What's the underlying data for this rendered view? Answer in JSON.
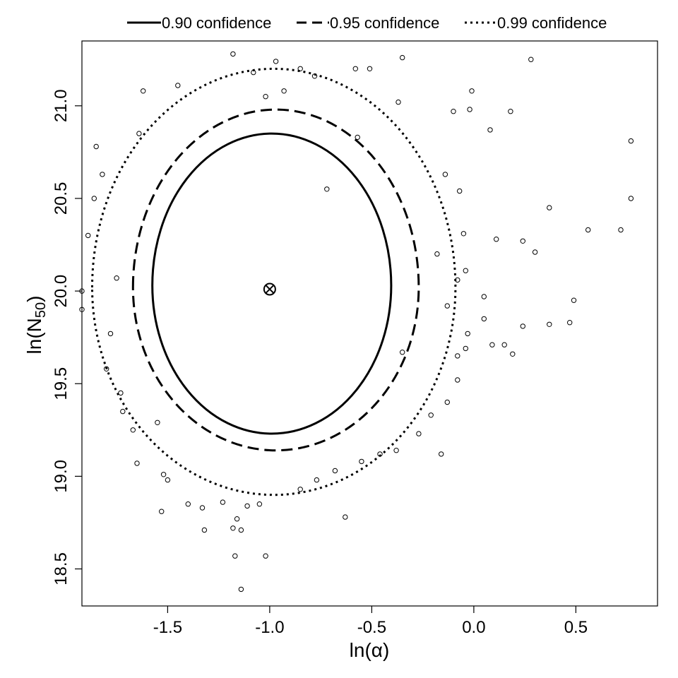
{
  "chart_data": {
    "type": "scatter",
    "title": "",
    "xlabel": "ln(α)",
    "ylabel": "ln(N50)",
    "ylabel_parts": {
      "prefix": "ln(N",
      "sub": "50",
      "suffix": ")"
    },
    "xlim": [
      -1.92,
      0.9
    ],
    "ylim": [
      18.3,
      21.35
    ],
    "x_ticks": [
      -1.5,
      -1.0,
      -0.5,
      0.0,
      0.5
    ],
    "x_tick_labels": [
      "-1.5",
      "-1.0",
      "-0.5",
      "0.0",
      "0.5"
    ],
    "y_ticks": [
      18.5,
      19.0,
      19.5,
      20.0,
      20.5,
      21.0
    ],
    "y_tick_labels": [
      "18.5",
      "19.0",
      "19.5",
      "20.0",
      "20.5",
      "21.0"
    ],
    "grid": false,
    "legend_placement": "top-outside",
    "legend": [
      {
        "label": "0.90 confidence",
        "style": "solid"
      },
      {
        "label": "0.95 confidence",
        "style": "dashed"
      },
      {
        "label": "0.99 confidence",
        "style": "dotted"
      }
    ],
    "center": {
      "x": -1.0,
      "y": 20.01
    },
    "ellipses": [
      {
        "level": "0.90",
        "style": "solid",
        "cx": -0.99,
        "cy": 20.03,
        "rx": 0.585,
        "ry_top": 0.82,
        "ry_bottom": 0.8
      },
      {
        "level": "0.95",
        "style": "dashed",
        "cx": -0.97,
        "cy": 20.02,
        "rx": 0.7,
        "ry_top": 0.96,
        "ry_bottom": 0.88
      },
      {
        "level": "0.99",
        "style": "dotted",
        "cx": -0.98,
        "cy": 20.02,
        "rx": 0.89,
        "ry_top": 1.18,
        "ry_bottom": 1.12
      }
    ],
    "points": [
      [
        -1.18,
        21.28
      ],
      [
        -1.08,
        21.18
      ],
      [
        -0.97,
        21.24
      ],
      [
        -0.85,
        21.2
      ],
      [
        -0.78,
        21.16
      ],
      [
        -0.58,
        21.2
      ],
      [
        -0.51,
        21.2
      ],
      [
        -0.35,
        21.26
      ],
      [
        0.28,
        21.25
      ],
      [
        -1.45,
        21.11
      ],
      [
        -1.62,
        21.08
      ],
      [
        -1.02,
        21.05
      ],
      [
        -0.93,
        21.08
      ],
      [
        -0.01,
        21.08
      ],
      [
        -0.37,
        21.02
      ],
      [
        0.18,
        20.97
      ],
      [
        -0.02,
        20.98
      ],
      [
        -1.85,
        20.78
      ],
      [
        0.77,
        20.81
      ],
      [
        0.08,
        20.87
      ],
      [
        -1.64,
        20.85
      ],
      [
        -0.1,
        20.97
      ],
      [
        -1.82,
        20.63
      ],
      [
        -0.72,
        20.55
      ],
      [
        -0.57,
        20.83
      ],
      [
        -1.86,
        20.5
      ],
      [
        0.77,
        20.5
      ],
      [
        -0.14,
        20.63
      ],
      [
        -0.07,
        20.54
      ],
      [
        0.37,
        20.45
      ],
      [
        0.56,
        20.33
      ],
      [
        -0.05,
        20.31
      ],
      [
        0.72,
        20.33
      ],
      [
        0.24,
        20.27
      ],
      [
        -1.89,
        20.3
      ],
      [
        0.11,
        20.28
      ],
      [
        -0.18,
        20.2
      ],
      [
        0.3,
        20.21
      ],
      [
        -0.08,
        20.06
      ],
      [
        -0.04,
        20.11
      ],
      [
        -1.92,
        20.0
      ],
      [
        -1.75,
        20.07
      ],
      [
        0.49,
        19.95
      ],
      [
        0.05,
        19.97
      ],
      [
        -0.13,
        19.92
      ],
      [
        -1.92,
        19.9
      ],
      [
        0.37,
        19.82
      ],
      [
        0.24,
        19.81
      ],
      [
        0.47,
        19.83
      ],
      [
        0.05,
        19.85
      ],
      [
        -0.03,
        19.77
      ],
      [
        -1.78,
        19.77
      ],
      [
        0.09,
        19.71
      ],
      [
        0.15,
        19.71
      ],
      [
        -0.04,
        19.69
      ],
      [
        -0.08,
        19.65
      ],
      [
        0.19,
        19.66
      ],
      [
        -0.35,
        19.67
      ],
      [
        -1.73,
        19.45
      ],
      [
        -1.67,
        19.25
      ],
      [
        -1.55,
        19.29
      ],
      [
        -1.52,
        19.01
      ],
      [
        -1.5,
        18.98
      ],
      [
        -1.65,
        19.07
      ],
      [
        -1.33,
        18.83
      ],
      [
        -1.16,
        18.77
      ],
      [
        -1.11,
        18.84
      ],
      [
        -1.05,
        18.85
      ],
      [
        -0.85,
        18.93
      ],
      [
        -0.77,
        18.98
      ],
      [
        -0.68,
        19.03
      ],
      [
        -0.63,
        18.78
      ],
      [
        -1.53,
        18.81
      ],
      [
        -1.4,
        18.85
      ],
      [
        -1.23,
        18.86
      ],
      [
        -1.18,
        18.72
      ],
      [
        -1.14,
        18.71
      ],
      [
        -1.32,
        18.71
      ],
      [
        -1.02,
        18.57
      ],
      [
        -1.17,
        18.57
      ],
      [
        -1.14,
        18.39
      ],
      [
        -0.55,
        19.08
      ],
      [
        -0.46,
        19.12
      ],
      [
        -0.38,
        19.14
      ],
      [
        -0.27,
        19.23
      ],
      [
        -0.21,
        19.33
      ],
      [
        -0.13,
        19.4
      ],
      [
        -0.08,
        19.52
      ],
      [
        -1.72,
        19.35
      ],
      [
        -1.8,
        19.58
      ],
      [
        -0.16,
        19.12
      ]
    ]
  }
}
